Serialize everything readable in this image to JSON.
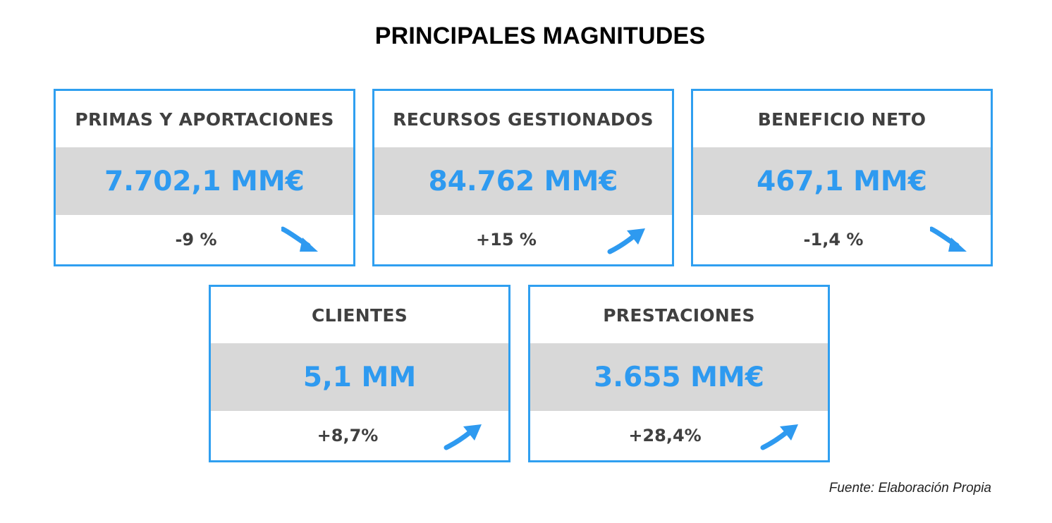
{
  "title": "PRINCIPALES MAGNITUDES",
  "colors": {
    "accent": "#2f9ff0",
    "band": "#d8d8d8",
    "label_text": "#404040"
  },
  "cards": [
    {
      "label": "PRIMAS Y APORTACIONES",
      "value": "7.702,1 MM€",
      "change": "-9 %",
      "trend": "down",
      "trend_icon": "arrow-down-right-icon"
    },
    {
      "label": "RECURSOS GESTIONADOS",
      "value": "84.762 MM€",
      "change": "+15 %",
      "trend": "up",
      "trend_icon": "arrow-up-right-icon"
    },
    {
      "label": "BENEFICIO NETO",
      "value": "467,1 MM€",
      "change": "-1,4 %",
      "trend": "down",
      "trend_icon": "arrow-down-right-icon"
    },
    {
      "label": "CLIENTES",
      "value": "5,1 MM",
      "change": "+8,7%",
      "trend": "up",
      "trend_icon": "arrow-up-right-icon"
    },
    {
      "label": "PRESTACIONES",
      "value": "3.655 MM€",
      "change": "+28,4%",
      "trend": "up",
      "trend_icon": "arrow-up-right-icon"
    }
  ],
  "source": "Fuente: Elaboración Propia"
}
